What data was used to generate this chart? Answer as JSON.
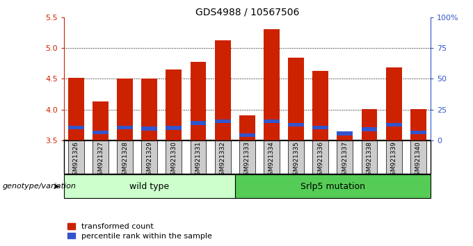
{
  "title": "GDS4988 / 10567506",
  "samples": [
    "GSM921326",
    "GSM921327",
    "GSM921328",
    "GSM921329",
    "GSM921330",
    "GSM921331",
    "GSM921332",
    "GSM921333",
    "GSM921334",
    "GSM921335",
    "GSM921336",
    "GSM921337",
    "GSM921338",
    "GSM921339",
    "GSM921340"
  ],
  "transformed_counts": [
    4.52,
    4.13,
    4.5,
    4.5,
    4.65,
    4.78,
    5.12,
    3.9,
    5.3,
    4.84,
    4.63,
    3.65,
    4.01,
    4.68,
    4.01
  ],
  "percentile_ranks": [
    3.68,
    3.6,
    3.68,
    3.66,
    3.67,
    3.75,
    3.78,
    3.55,
    3.78,
    3.72,
    3.68,
    3.58,
    3.65,
    3.72,
    3.6
  ],
  "blue_bar_height": 0.06,
  "bar_bottom": 3.5,
  "ylim": [
    3.5,
    5.5
  ],
  "yticks_left": [
    3.5,
    4.0,
    4.5,
    5.0,
    5.5
  ],
  "right_tick_positions": [
    3.5,
    4.0,
    4.5,
    5.0,
    5.5
  ],
  "right_tick_labels": [
    "0",
    "25",
    "50",
    "75",
    "100%"
  ],
  "red_color": "#cc2200",
  "blue_color": "#3355cc",
  "wild_type_label": "wild type",
  "mutation_label": "Srlp5 mutation",
  "group_bg_wt": "#ccffcc",
  "group_bg_mut": "#55cc55",
  "genotype_label": "genotype/variation",
  "legend_labels": [
    "transformed count",
    "percentile rank within the sample"
  ],
  "bar_width": 0.65,
  "tick_fontsize": 8,
  "label_fontsize": 7,
  "n_wildtype": 7,
  "n_total": 15
}
